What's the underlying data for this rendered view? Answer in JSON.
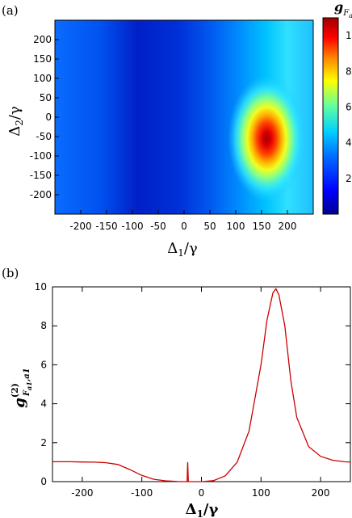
{
  "chart_data": [
    {
      "type": "heatmap",
      "panel_label": "(a)",
      "xlabel": "Δ1/γ",
      "ylabel": "Δ2/γ",
      "colorbar_label": "g_{F_{a1}}",
      "xlim": [
        -250,
        250
      ],
      "ylim": [
        -250,
        250
      ],
      "x_ticks": [
        "-200",
        "-150",
        "-100",
        "-50",
        "0",
        "50",
        "100",
        "150",
        "200"
      ],
      "y_ticks": [
        "200",
        "150",
        "100",
        "50",
        "0",
        "-50",
        "-100",
        "-150",
        "-200"
      ],
      "colorbar_ticks": [
        "1",
        "8",
        "6",
        "4",
        "2"
      ],
      "colorbar_range": [
        0,
        11
      ],
      "peak": {
        "x": 160,
        "y": -55,
        "value": 10.5
      },
      "colors": {
        "low": "#00008f",
        "mid": "#00c8ff",
        "high": "#a00000"
      }
    },
    {
      "type": "line",
      "panel_label": "(b)",
      "xlabel": "Δ1/γ",
      "ylabel": "g^(2)_{F_{a1},a1}",
      "xlim": [
        -250,
        250
      ],
      "ylim": [
        0,
        10
      ],
      "x_ticks": [
        "-200",
        "-100",
        "0",
        "100",
        "200"
      ],
      "y_ticks": [
        "10",
        "8",
        "6",
        "4",
        "2",
        "0"
      ],
      "series": [
        {
          "color": "#cc0000",
          "x": [
            -250,
            -220,
            -200,
            -180,
            -160,
            -140,
            -120,
            -100,
            -80,
            -60,
            -40,
            -30,
            -24,
            -23,
            -22,
            -21,
            -20,
            -10,
            0,
            20,
            40,
            60,
            80,
            100,
            110,
            120,
            125,
            130,
            140,
            150,
            160,
            180,
            200,
            220,
            240,
            250
          ],
          "y": [
            1.02,
            1.02,
            1.01,
            1.0,
            0.97,
            0.88,
            0.62,
            0.32,
            0.12,
            0.04,
            0.01,
            0.0,
            0.0,
            1.0,
            0.0,
            0.0,
            0.0,
            0.0,
            0.0,
            0.05,
            0.3,
            1.0,
            2.6,
            6.0,
            8.3,
            9.7,
            9.9,
            9.6,
            8.0,
            5.2,
            3.3,
            1.8,
            1.3,
            1.1,
            1.02,
            1.0
          ]
        }
      ]
    }
  ]
}
